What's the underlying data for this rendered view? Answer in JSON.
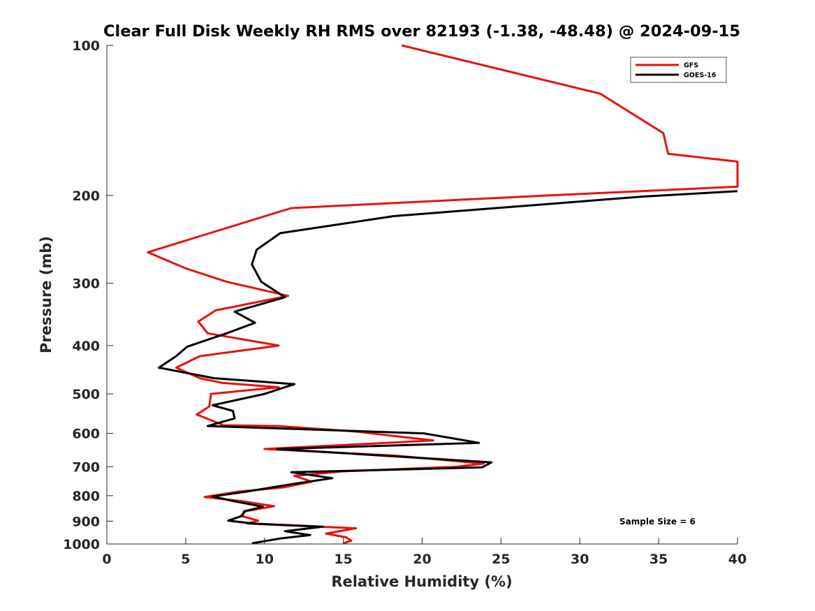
{
  "chart_data": {
    "type": "line",
    "title": "Clear Full Disk Weekly RH RMS over 82193 (-1.38, -48.48) @ 2024-09-15",
    "xlabel": "Relative Humidity (%)",
    "ylabel": "Pressure (mb)",
    "xlim": [
      0,
      40
    ],
    "ylim": [
      100,
      1000
    ],
    "y_scale": "log",
    "y_reversed": true,
    "x_ticks": [
      "0",
      "5",
      "10",
      "15",
      "20",
      "25",
      "30",
      "35",
      "40"
    ],
    "y_ticks": [
      "100",
      "200",
      "300",
      "400",
      "500",
      "600",
      "700",
      "800",
      "900",
      "1000"
    ],
    "grid": false,
    "legend_position": "top-right",
    "annotation": "Sample Size = 6",
    "series": [
      {
        "name": "GFS",
        "color": "#e8120c",
        "points": [
          [
            18.7,
            100
          ],
          [
            31.3,
            125
          ],
          [
            35.3,
            150
          ],
          [
            35.6,
            165
          ],
          [
            40.0,
            171
          ],
          [
            40.0,
            192
          ],
          [
            28.0,
            200
          ],
          [
            11.7,
            212
          ],
          [
            5.8,
            242
          ],
          [
            2.6,
            260
          ],
          [
            5.0,
            280
          ],
          [
            7.6,
            298
          ],
          [
            11.5,
            318
          ],
          [
            6.9,
            340
          ],
          [
            5.8,
            358
          ],
          [
            6.4,
            378
          ],
          [
            10.9,
            400
          ],
          [
            5.9,
            420
          ],
          [
            4.4,
            443
          ],
          [
            5.9,
            465
          ],
          [
            7.3,
            475
          ],
          [
            10.9,
            485
          ],
          [
            6.6,
            500
          ],
          [
            6.5,
            530
          ],
          [
            5.7,
            550
          ],
          [
            7.4,
            578
          ],
          [
            10.9,
            580
          ],
          [
            15.8,
            595
          ],
          [
            20.7,
            620
          ],
          [
            10.0,
            645
          ],
          [
            18.3,
            665
          ],
          [
            23.9,
            690
          ],
          [
            22.2,
            700
          ],
          [
            15.0,
            715
          ],
          [
            11.9,
            730
          ],
          [
            13.0,
            750
          ],
          [
            11.2,
            770
          ],
          [
            8.4,
            785
          ],
          [
            6.2,
            805
          ],
          [
            8.5,
            820
          ],
          [
            10.6,
            840
          ],
          [
            8.8,
            860
          ],
          [
            8.5,
            878
          ],
          [
            9.6,
            898
          ],
          [
            8.9,
            910
          ],
          [
            15.8,
            930
          ],
          [
            13.9,
            953
          ],
          [
            15.2,
            970
          ],
          [
            15.5,
            985
          ],
          [
            15.0,
            997
          ]
        ]
      },
      {
        "name": "GOES-16",
        "color": "#000000",
        "points": [
          [
            40.0,
            196
          ],
          [
            34.0,
            201
          ],
          [
            18.2,
            220
          ],
          [
            11.0,
            238
          ],
          [
            9.5,
            257
          ],
          [
            9.2,
            275
          ],
          [
            9.8,
            298
          ],
          [
            11.3,
            320
          ],
          [
            8.1,
            342
          ],
          [
            9.4,
            360
          ],
          [
            7.6,
            378
          ],
          [
            5.1,
            402
          ],
          [
            4.4,
            420
          ],
          [
            3.3,
            443
          ],
          [
            6.8,
            465
          ],
          [
            11.9,
            478
          ],
          [
            10.0,
            500
          ],
          [
            6.7,
            527
          ],
          [
            8.0,
            541
          ],
          [
            8.1,
            560
          ],
          [
            6.4,
            580
          ],
          [
            20.1,
            600
          ],
          [
            23.6,
            627
          ],
          [
            10.8,
            645
          ],
          [
            17.5,
            665
          ],
          [
            24.4,
            686
          ],
          [
            23.8,
            702
          ],
          [
            11.7,
            718
          ],
          [
            14.3,
            738
          ],
          [
            11.8,
            758
          ],
          [
            8.9,
            785
          ],
          [
            6.7,
            803
          ],
          [
            8.0,
            820
          ],
          [
            9.9,
            842
          ],
          [
            8.7,
            860
          ],
          [
            8.6,
            878
          ],
          [
            7.7,
            898
          ],
          [
            9.3,
            910
          ],
          [
            13.7,
            923
          ],
          [
            11.3,
            943
          ],
          [
            12.9,
            960
          ],
          [
            11.0,
            975
          ],
          [
            9.2,
            997
          ]
        ]
      }
    ]
  }
}
